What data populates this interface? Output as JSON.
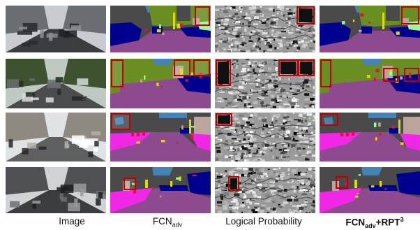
{
  "figure": {
    "columns": [
      {
        "key": "image",
        "label": "Image"
      },
      {
        "key": "fcn",
        "label_main": "FCN",
        "label_sub": "adv"
      },
      {
        "key": "prob",
        "label": "Logical Probability"
      },
      {
        "key": "rpt",
        "label_main": "FCN",
        "label_sub": "adv",
        "label_plus": "+RPT",
        "label_sup": "3"
      }
    ],
    "rows": 4
  },
  "colors": {
    "road": "#8e4a8e",
    "sidewalk": "#f028e6",
    "building": "#4a4a4a",
    "vegetation": "#6b8e23",
    "sky": "#4682b4",
    "car": "#00008e",
    "sign": "#dcdc00",
    "person": "#dc143c",
    "wall": "#bca49c",
    "terrain": "#98fb98",
    "highlight": "#c00000"
  }
}
